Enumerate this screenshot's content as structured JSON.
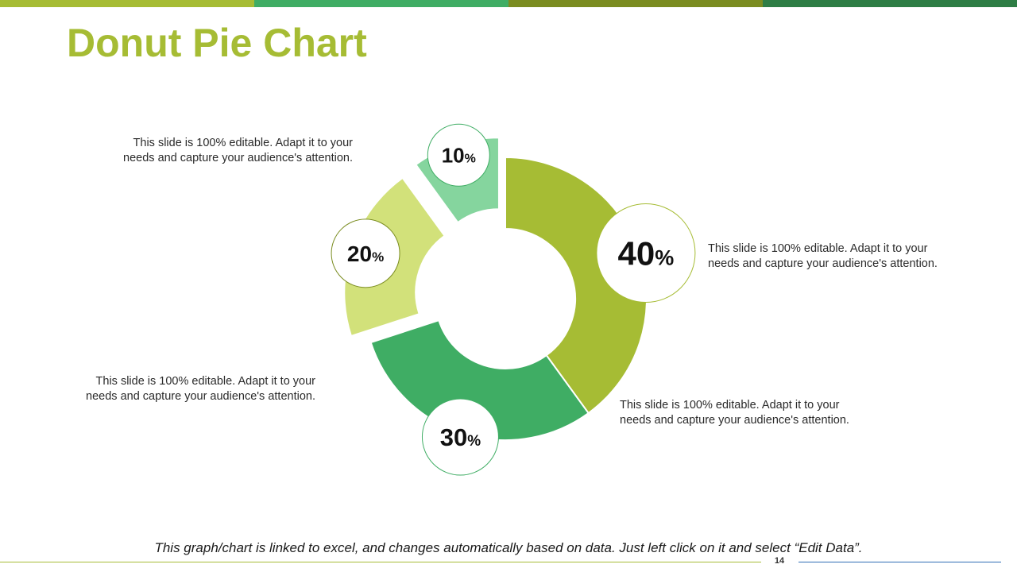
{
  "slide": {
    "title": "Donut Pie Chart",
    "title_color": "#a6bc34",
    "top_bar_colors": [
      "#a6bc34",
      "#3fad64",
      "#7a8c20",
      "#2e7d45"
    ],
    "page_number": "14",
    "footer_note": "This graph/chart is linked to excel, and changes automatically based on data. Just left click on it and select “Edit Data”."
  },
  "chart_data": {
    "type": "pie",
    "variant": "donut",
    "title": "Donut Pie Chart",
    "slices": [
      {
        "value": 40,
        "label": "40",
        "unit": "%",
        "color": "#a6bc34",
        "exploded": false,
        "description": "This slide is 100% editable. Adapt it to your needs and capture your audience's attention."
      },
      {
        "value": 30,
        "label": "30",
        "unit": "%",
        "color": "#3fad64",
        "exploded": false,
        "description": "This slide is 100% editable. Adapt it to your needs and capture your audience's attention."
      },
      {
        "value": 20,
        "label": "20",
        "unit": "%",
        "color": "#d2e17a",
        "exploded": true,
        "description": "This slide is 100% editable. Adapt it to your needs and capture your audience's attention."
      },
      {
        "value": 10,
        "label": "10",
        "unit": "%",
        "color": "#85d59e",
        "exploded": true,
        "description": "This slide is 100% editable. Adapt it to your needs and capture your audience's attention."
      }
    ],
    "legend": "none"
  }
}
